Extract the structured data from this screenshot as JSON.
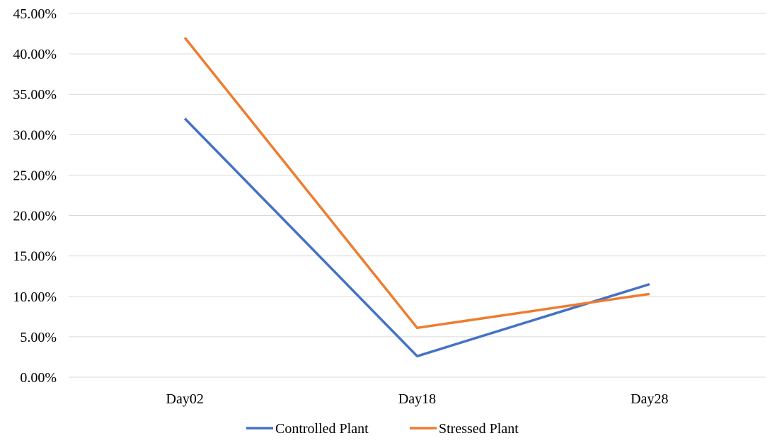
{
  "chart_data": {
    "type": "line",
    "title": "",
    "xlabel": "",
    "ylabel": "",
    "categories": [
      "Day02",
      "Day18",
      "Day28"
    ],
    "ylim": [
      0,
      45
    ],
    "y_ticks": [
      0,
      5,
      10,
      15,
      20,
      25,
      30,
      35,
      40,
      45
    ],
    "y_tick_labels": [
      "0.00%",
      "5.00%",
      "10.00%",
      "15.00%",
      "20.00%",
      "25.00%",
      "30.00%",
      "35.00%",
      "40.00%",
      "45.00%"
    ],
    "grid": true,
    "legend_position": "bottom",
    "series": [
      {
        "name": "Controlled Plant",
        "color": "#4472c4",
        "values": [
          32.0,
          2.6,
          11.5
        ]
      },
      {
        "name": "Stressed Plant",
        "color": "#ed7d31",
        "values": [
          42.0,
          6.1,
          10.3
        ]
      }
    ]
  }
}
